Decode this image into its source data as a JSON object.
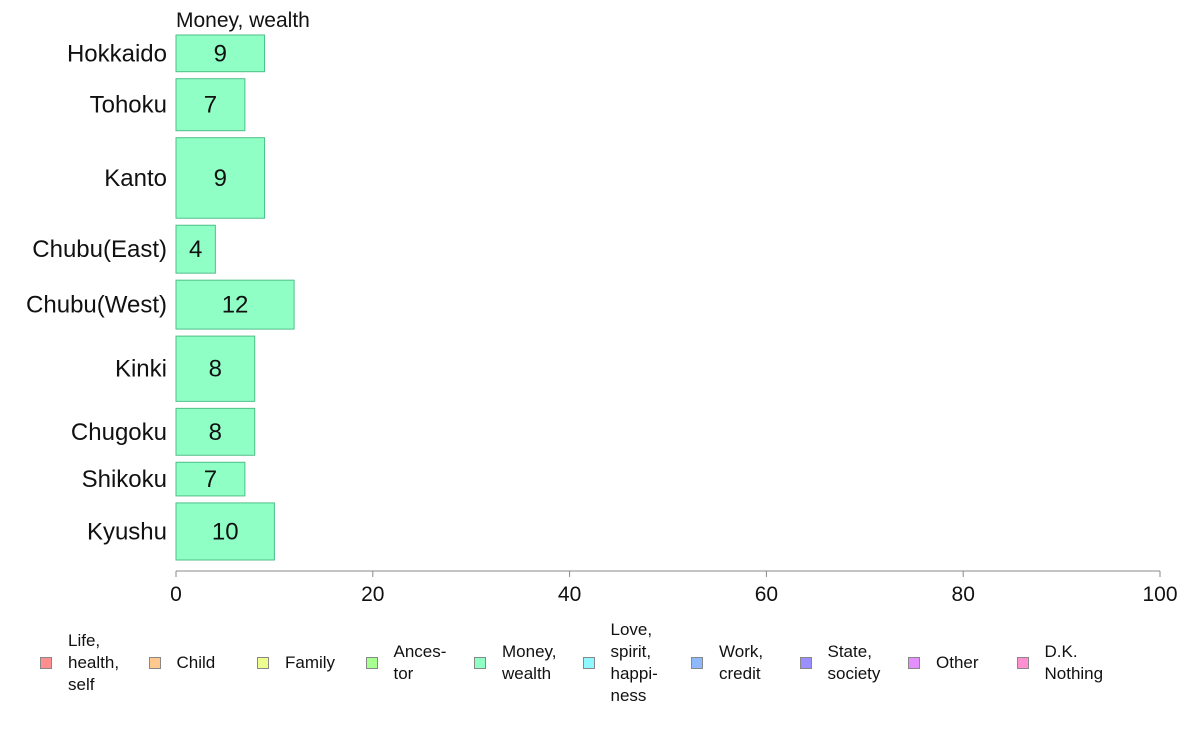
{
  "chart_data": {
    "type": "bar",
    "orientation": "horizontal",
    "panel_title": "Money, wealth",
    "categories": [
      "Hokkaido",
      "Tohoku",
      "Kanto",
      "Chubu(East)",
      "Chubu(West)",
      "Kinki",
      "Chugoku",
      "Shikoku",
      "Kyushu"
    ],
    "category_weights": [
      36,
      51,
      79,
      47,
      48,
      64,
      46,
      33,
      56
    ],
    "values": [
      9,
      7,
      9,
      4,
      12,
      8,
      8,
      7,
      10
    ],
    "value_labels": [
      "9",
      "7",
      "9",
      "4",
      "12",
      "8",
      "8",
      "7",
      "10"
    ],
    "bar_color": "#8fffc6",
    "bar_stroke": "#4fbf8a",
    "xlim": [
      0,
      100
    ],
    "xticks": [
      0,
      20,
      40,
      60,
      80,
      100
    ],
    "xtick_labels": [
      "0",
      "20",
      "40",
      "60",
      "80",
      "100"
    ],
    "grid": false,
    "legend_position": "bottom",
    "legend": [
      {
        "label": "Life,\nhealth,\nself",
        "color": "#ff8f8f"
      },
      {
        "label": "Child",
        "color": "#ffc88f"
      },
      {
        "label": "Family",
        "color": "#eeff8f"
      },
      {
        "label": "Ances-\ntor",
        "color": "#a7ff8f"
      },
      {
        "label": "Money,\nwealth",
        "color": "#8fffc6"
      },
      {
        "label": "Love,\nspirit,\nhappi-\nness",
        "color": "#8ff7ff"
      },
      {
        "label": "Work,\ncredit",
        "color": "#8fb9ff"
      },
      {
        "label": "State,\nsociety",
        "color": "#9b8fff"
      },
      {
        "label": "Other",
        "color": "#e58fff"
      },
      {
        "label": "D.K.\nNothing",
        "color": "#ff8fd0"
      }
    ]
  }
}
